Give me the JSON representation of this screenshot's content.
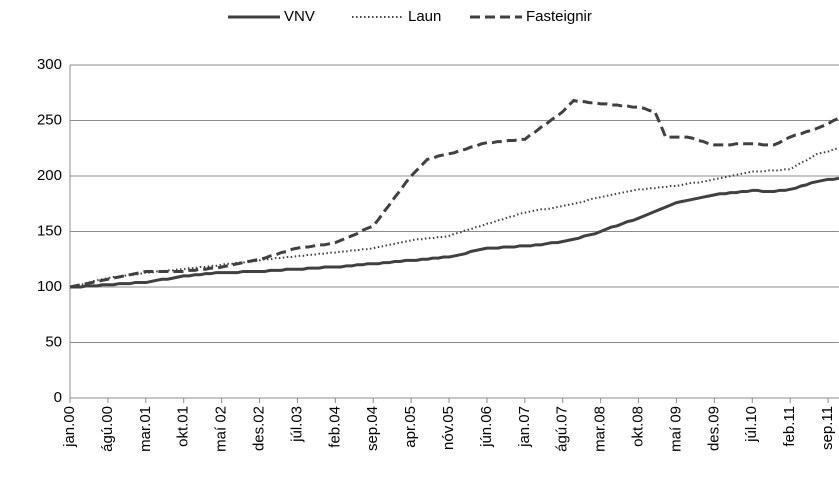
{
  "chart_data": {
    "type": "line",
    "categories": [
      "jan.00",
      null,
      null,
      null,
      null,
      null,
      null,
      "ágú.00",
      null,
      null,
      null,
      null,
      null,
      null,
      "mar.01",
      null,
      null,
      null,
      null,
      null,
      null,
      "okt.01",
      null,
      null,
      null,
      null,
      null,
      null,
      "maí 02",
      null,
      null,
      null,
      null,
      null,
      null,
      "des.02",
      null,
      null,
      null,
      null,
      null,
      null,
      "júl.03",
      null,
      null,
      null,
      null,
      null,
      null,
      "feb.04",
      null,
      null,
      null,
      null,
      null,
      null,
      "sep.04",
      null,
      null,
      null,
      null,
      null,
      null,
      "apr.05",
      null,
      null,
      null,
      null,
      null,
      null,
      "nóv.05",
      null,
      null,
      null,
      null,
      null,
      null,
      "jún.06",
      null,
      null,
      null,
      null,
      null,
      null,
      "jan.07",
      null,
      null,
      null,
      null,
      null,
      null,
      "ágú.07",
      null,
      null,
      null,
      null,
      null,
      null,
      "mar.08",
      null,
      null,
      null,
      null,
      null,
      null,
      "okt.08",
      null,
      null,
      null,
      null,
      null,
      null,
      "maí 09",
      null,
      null,
      null,
      null,
      null,
      null,
      "des.09",
      null,
      null,
      null,
      null,
      null,
      null,
      "júl.10",
      null,
      null,
      null,
      null,
      null,
      null,
      "feb.11",
      null,
      null,
      null,
      null,
      null,
      null,
      "sep.11",
      null,
      null
    ],
    "series": [
      {
        "name": "VNV",
        "color": "#404040",
        "dash": "solid",
        "values": [
          100,
          100,
          100,
          101,
          101,
          101,
          102,
          102,
          102,
          103,
          103,
          103,
          104,
          104,
          104,
          105,
          106,
          107,
          107,
          108,
          109,
          110,
          110,
          111,
          111,
          112,
          112,
          113,
          113,
          113,
          113,
          113,
          114,
          114,
          114,
          114,
          114,
          115,
          115,
          115,
          116,
          116,
          116,
          116,
          117,
          117,
          117,
          118,
          118,
          118,
          118,
          119,
          119,
          120,
          120,
          121,
          121,
          121,
          122,
          122,
          123,
          123,
          124,
          124,
          124,
          125,
          125,
          126,
          126,
          127,
          127,
          128,
          129,
          130,
          132,
          133,
          134,
          135,
          135,
          135,
          136,
          136,
          136,
          137,
          137,
          137,
          138,
          138,
          139,
          140,
          140,
          141,
          142,
          143,
          144,
          146,
          147,
          148,
          150,
          152,
          154,
          155,
          157,
          159,
          160,
          162,
          164,
          166,
          168,
          170,
          172,
          174,
          176,
          177,
          178,
          179,
          180,
          181,
          182,
          183,
          184,
          184,
          185,
          185,
          186,
          186,
          187,
          187,
          186,
          186,
          186,
          187,
          187,
          188,
          189,
          191,
          192,
          194,
          195,
          196,
          197,
          197,
          198
        ]
      },
      {
        "name": "Laun",
        "color": "#404040",
        "dash": "dotted",
        "values": [
          100,
          101,
          102,
          103,
          105,
          106,
          107,
          108,
          109,
          109,
          110,
          111,
          111,
          112,
          113,
          113,
          114,
          114,
          115,
          115,
          116,
          116,
          117,
          117,
          118,
          118,
          119,
          119,
          120,
          121,
          121,
          122,
          122,
          123,
          123,
          124,
          125,
          125,
          126,
          126,
          127,
          127,
          128,
          128,
          129,
          129,
          130,
          130,
          131,
          131,
          132,
          132,
          133,
          133,
          134,
          134,
          135,
          136,
          137,
          138,
          139,
          140,
          141,
          142,
          143,
          143,
          144,
          144,
          145,
          145,
          146,
          148,
          149,
          151,
          152,
          154,
          155,
          157,
          158,
          160,
          161,
          163,
          164,
          166,
          167,
          168,
          169,
          170,
          170,
          171,
          172,
          173,
          174,
          175,
          176,
          177,
          179,
          180,
          181,
          182,
          183,
          184,
          185,
          186,
          187,
          188,
          188,
          189,
          189,
          190,
          190,
          191,
          191,
          192,
          193,
          194,
          194,
          195,
          196,
          197,
          198,
          199,
          200,
          201,
          202,
          203,
          204,
          204,
          204,
          205,
          205,
          205,
          206,
          206,
          209,
          212,
          214,
          217,
          220,
          221,
          222,
          224,
          225
        ]
      },
      {
        "name": "Fasteignir",
        "color": "#404040",
        "dash": "dashed",
        "values": [
          100,
          101,
          102,
          103,
          104,
          105,
          106,
          107,
          108,
          109,
          110,
          111,
          112,
          113,
          114,
          114,
          114,
          114,
          114,
          114,
          114,
          114,
          115,
          115,
          116,
          116,
          117,
          117,
          118,
          119,
          120,
          121,
          122,
          123,
          124,
          125,
          126,
          128,
          129,
          131,
          132,
          134,
          135,
          136,
          136,
          137,
          138,
          138,
          139,
          140,
          142,
          144,
          146,
          148,
          151,
          153,
          155,
          161,
          168,
          174,
          181,
          187,
          194,
          200,
          205,
          210,
          215,
          216,
          218,
          219,
          220,
          221,
          223,
          224,
          226,
          227,
          229,
          230,
          230,
          231,
          231,
          232,
          232,
          233,
          233,
          237,
          240,
          244,
          247,
          251,
          254,
          258,
          263,
          268,
          267,
          267,
          266,
          266,
          265,
          265,
          264,
          264,
          263,
          263,
          262,
          262,
          261,
          259,
          258,
          247,
          235,
          235,
          235,
          235,
          235,
          234,
          232,
          231,
          229,
          228,
          228,
          228,
          228,
          229,
          229,
          229,
          229,
          229,
          228,
          228,
          228,
          230,
          233,
          235,
          237,
          238,
          240,
          241,
          243,
          245,
          247,
          250,
          252
        ]
      }
    ],
    "ylim": [
      0,
      300
    ],
    "yticks": [
      0,
      50,
      100,
      150,
      200,
      250,
      300
    ],
    "grid": true,
    "legend": "top"
  }
}
